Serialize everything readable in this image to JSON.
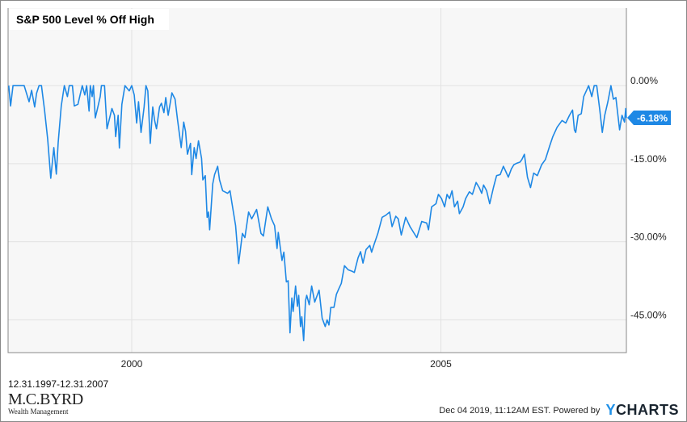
{
  "chart_data": {
    "type": "line",
    "title": "S&P 500 Level % Off High",
    "xlabel": "",
    "ylabel": "",
    "xlim": [
      1998,
      2008
    ],
    "ylim": [
      -51.3,
      14.9
    ],
    "grid": true,
    "x_ticks": [
      {
        "value": 2000,
        "label": "2000"
      },
      {
        "value": 2005,
        "label": "2005"
      }
    ],
    "y_ticks": [
      {
        "value": 0,
        "label": "0.00%"
      },
      {
        "value": -15,
        "label": "-15.00%"
      },
      {
        "value": -30,
        "label": "-30.00%"
      },
      {
        "value": -45,
        "label": "-45.00%"
      }
    ],
    "last_value_label": "-6.18%",
    "series": [
      {
        "name": "S&P 500 Level % Off High",
        "color": "#1e88e5",
        "x": [
          1998.01,
          1998.04,
          1998.08,
          1998.26,
          1998.34,
          1998.38,
          1998.43,
          1998.46,
          1998.5,
          1998.54,
          1998.59,
          1998.64,
          1998.69,
          1998.74,
          1998.78,
          1998.81,
          1998.86,
          1998.91,
          1998.96,
          1998.99,
          1999.04,
          1999.07,
          1999.13,
          1999.2,
          1999.24,
          1999.27,
          1999.31,
          1999.33,
          1999.36,
          1999.38,
          1999.41,
          1999.44,
          1999.49,
          1999.51,
          1999.56,
          1999.6,
          1999.68,
          1999.72,
          1999.74,
          1999.78,
          1999.8,
          1999.84,
          1999.89,
          1999.96,
          2000.0,
          2000.04,
          2000.08,
          2000.11,
          2000.15,
          2000.2,
          2000.23,
          2000.26,
          2000.3,
          2000.34,
          2000.37,
          2000.4,
          2000.45,
          2000.48,
          2000.52,
          2000.55,
          2000.59,
          2000.65,
          2000.7,
          2000.74,
          2000.8,
          2000.84,
          2000.87,
          2000.9,
          2000.95,
          2000.97,
          2001.01,
          2001.04,
          2001.08,
          2001.13,
          2001.15,
          2001.19,
          2001.22,
          2001.24,
          2001.26,
          2001.31,
          2001.34,
          2001.39,
          2001.42,
          2001.47,
          2001.55,
          2001.59,
          2001.62,
          2001.68,
          2001.73,
          2001.79,
          2001.83,
          2001.89,
          2001.94,
          2002.02,
          2002.09,
          2002.13,
          2002.2,
          2002.26,
          2002.31,
          2002.35,
          2002.37,
          2002.43,
          2002.46,
          2002.5,
          2002.53,
          2002.56,
          2002.59,
          2002.61,
          2002.65,
          2002.68,
          2002.7,
          2002.73,
          2002.75,
          2002.78,
          2002.81,
          2002.83,
          2002.87,
          2002.91,
          2002.96,
          2003.03,
          2003.08,
          2003.13,
          2003.16,
          2003.19,
          2003.22,
          2003.27,
          2003.31,
          2003.35,
          2003.39,
          2003.44,
          2003.5,
          2003.57,
          2003.6,
          2003.66,
          2003.7,
          2003.74,
          2003.79,
          2003.85,
          2003.88,
          2003.92,
          2003.98,
          2004.05,
          2004.11,
          2004.17,
          2004.21,
          2004.27,
          2004.31,
          2004.36,
          2004.43,
          2004.5,
          2004.61,
          2004.69,
          2004.77,
          2004.8,
          2004.85,
          2004.92,
          2004.96,
          2005.01,
          2005.06,
          2005.1,
          2005.14,
          2005.18,
          2005.22,
          2005.27,
          2005.3,
          2005.36,
          2005.4,
          2005.46,
          2005.51,
          2005.57,
          2005.62,
          2005.66,
          2005.69,
          2005.74,
          2005.79,
          2005.85,
          2005.9,
          2005.96,
          2006.01,
          2006.05,
          2006.09,
          2006.14,
          2006.18,
          2006.23,
          2006.28,
          2006.31,
          2006.35,
          2006.4,
          2006.45,
          2006.5,
          2006.56,
          2006.63,
          2006.69,
          2006.76,
          2006.81,
          2006.88,
          2006.96,
          2007.02,
          2007.08,
          2007.13,
          2007.16,
          2007.18,
          2007.22,
          2007.27,
          2007.31,
          2007.36,
          2007.39,
          2007.44,
          2007.48,
          2007.52,
          2007.57,
          2007.61,
          2007.65,
          2007.7,
          2007.75,
          2007.79,
          2007.83,
          2007.89,
          2007.93,
          2007.97,
          2007.99,
          2008.0
        ],
        "y": [
          0,
          -3.9,
          0,
          0,
          -3.1,
          -0.9,
          -4.1,
          -1.5,
          0,
          0,
          -4.7,
          -10.3,
          -17.8,
          -11.9,
          -17,
          -10.9,
          -3.9,
          0,
          -2.1,
          0,
          0,
          -3.9,
          -3.6,
          0,
          -1.8,
          0,
          -4.9,
          0,
          -2.1,
          0,
          -6.2,
          -4.7,
          -2.1,
          0,
          0,
          -8.3,
          -4.4,
          -5.7,
          -9.8,
          -5.7,
          -12,
          -3.6,
          0,
          -1,
          0,
          -1.8,
          -7.2,
          -3.1,
          -9,
          -4.1,
          0,
          -1,
          -11.1,
          -4.1,
          -6.7,
          -8.3,
          -4.1,
          -3.4,
          -5.2,
          -2.3,
          -5.7,
          -1.4,
          -2.6,
          -6.5,
          -11.9,
          -7,
          -8.8,
          -13.2,
          -11.1,
          -17.1,
          -11.9,
          -14,
          -10.6,
          -14,
          -18.1,
          -17.3,
          -25.3,
          -24.3,
          -27.7,
          -18.9,
          -17.1,
          -15.5,
          -18.1,
          -20.2,
          -20.7,
          -20.2,
          -22.5,
          -26.9,
          -34.2,
          -28.4,
          -29.2,
          -24.3,
          -25.6,
          -23.8,
          -28.4,
          -28.9,
          -23.3,
          -25.6,
          -26.9,
          -31.3,
          -28.2,
          -33.6,
          -32,
          -37.7,
          -37.5,
          -47.5,
          -40.8,
          -43.4,
          -38.5,
          -42.4,
          -40.3,
          -46.3,
          -44.4,
          -49,
          -41.3,
          -40.3,
          -42.1,
          -38.5,
          -41.6,
          -39.3,
          -44.7,
          -46.3,
          -45,
          -46,
          -42.6,
          -42.6,
          -40.1,
          -39,
          -38,
          -34.6,
          -35.4,
          -35.7,
          -35.9,
          -33.1,
          -31.9,
          -34.1,
          -31.5,
          -30.7,
          -32,
          -30.5,
          -28.4,
          -25.3,
          -24.9,
          -24.3,
          -27.1,
          -25.1,
          -25.6,
          -28.7,
          -25.3,
          -27.1,
          -29.2,
          -26.1,
          -26.4,
          -27.7,
          -23.3,
          -22.7,
          -20.9,
          -21.7,
          -23.3,
          -20.9,
          -21.7,
          -20.2,
          -23.3,
          -22.2,
          -24.6,
          -23.3,
          -21.7,
          -20.4,
          -20.9,
          -18.6,
          -19.6,
          -20.7,
          -19.1,
          -20.2,
          -22.7,
          -19.6,
          -17.3,
          -17.1,
          -15.5,
          -16.5,
          -17.6,
          -16,
          -15.2,
          -14.9,
          -14.7,
          -14.2,
          -13.2,
          -17.6,
          -19.6,
          -16.8,
          -17.3,
          -15.2,
          -14.2,
          -11.6,
          -9.8,
          -8,
          -6.7,
          -7.2,
          -5.7,
          -4.7,
          -8.5,
          -9,
          -5.7,
          -5.4,
          -2.1,
          -0.8,
          0,
          -2.1,
          0,
          0,
          -4.7,
          -9,
          -5.7,
          -3.1,
          0,
          -2.6,
          -2.3,
          -8.5,
          -5.7,
          -7,
          -4.4,
          -6.18
        ]
      }
    ]
  },
  "footer": {
    "date_range": "12.31.1997-12.31.2007",
    "logo_name": "M.C.BYRD",
    "logo_sub": "Wealth Management",
    "timestamp": "Dec 04 2019, 11:12AM EST.",
    "powered_by": "Powered by",
    "brand_y": "Y",
    "brand_rest": "CHARTS"
  },
  "colors": {
    "line": "#1e88e5",
    "plot_bg": "#f7f7f7",
    "grid": "#e2e2e2",
    "axis": "#888888"
  }
}
